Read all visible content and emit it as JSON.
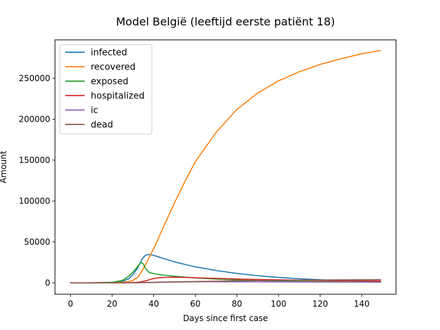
{
  "chart_data": {
    "type": "line",
    "title": "Model België (leeftijd eerste patiënt 18)",
    "xlabel": "Days since first case",
    "ylabel": "Amount",
    "xlim": [
      -7.45,
      156.45
    ],
    "ylim": [
      -14000,
      297000
    ],
    "grid": false,
    "legend_position": "top-left",
    "x_ticks": [
      0,
      20,
      40,
      60,
      80,
      100,
      120,
      140
    ],
    "y_ticks": [
      0,
      50000,
      100000,
      150000,
      200000,
      250000
    ],
    "x": [
      0,
      10,
      20,
      25,
      28,
      30,
      32,
      33,
      34,
      35,
      36,
      37,
      38,
      39,
      40,
      42,
      45,
      50,
      55,
      60,
      70,
      80,
      90,
      100,
      110,
      120,
      130,
      140,
      149
    ],
    "series": [
      {
        "name": "infected",
        "color": "#1f77b4",
        "values": [
          0,
          20,
          300,
          1800,
          5000,
          10000,
          17000,
          22000,
          27000,
          31000,
          33500,
          34500,
          34500,
          34200,
          33500,
          32000,
          29500,
          25500,
          22500,
          19500,
          15000,
          11500,
          8700,
          6500,
          4900,
          3700,
          2800,
          2100,
          1700
        ]
      },
      {
        "name": "recovered",
        "color": "#ff7f0e",
        "values": [
          0,
          0,
          100,
          600,
          1500,
          3000,
          6000,
          9000,
          13000,
          17500,
          22000,
          27000,
          32000,
          37000,
          42000,
          53000,
          70000,
          98000,
          124000,
          148000,
          184000,
          212000,
          232000,
          247000,
          258000,
          267000,
          274000,
          280000,
          284000
        ]
      },
      {
        "name": "exposed",
        "color": "#2ca02c",
        "values": [
          0,
          40,
          600,
          3000,
          8000,
          13000,
          19000,
          22500,
          25000,
          23000,
          18000,
          14500,
          12500,
          11800,
          11200,
          10300,
          9300,
          8000,
          6900,
          5900,
          4500,
          3500,
          2700,
          2100,
          1700,
          1400,
          1200,
          1000,
          900
        ]
      },
      {
        "name": "hospitalized",
        "color": "#d62728",
        "values": [
          0,
          0,
          0,
          50,
          150,
          300,
          600,
          900,
          1300,
          1800,
          2400,
          3000,
          3800,
          4500,
          5200,
          6000,
          6500,
          6800,
          6600,
          6200,
          5400,
          4700,
          4100,
          3600,
          3200,
          2900,
          2600,
          2400,
          2200
        ]
      },
      {
        "name": "ic",
        "color": "#9467bd",
        "values": [
          0,
          0,
          0,
          10,
          30,
          60,
          100,
          150,
          200,
          250,
          300,
          380,
          460,
          540,
          620,
          780,
          950,
          1150,
          1250,
          1300,
          1300,
          1250,
          1150,
          1050,
          950,
          850,
          750,
          700,
          650
        ]
      },
      {
        "name": "dead",
        "color": "#8c564b",
        "values": [
          0,
          0,
          0,
          5,
          20,
          40,
          70,
          100,
          130,
          170,
          210,
          260,
          310,
          370,
          430,
          550,
          700,
          950,
          1200,
          1450,
          1900,
          2300,
          2650,
          2950,
          3200,
          3400,
          3550,
          3700,
          3800
        ]
      }
    ]
  }
}
